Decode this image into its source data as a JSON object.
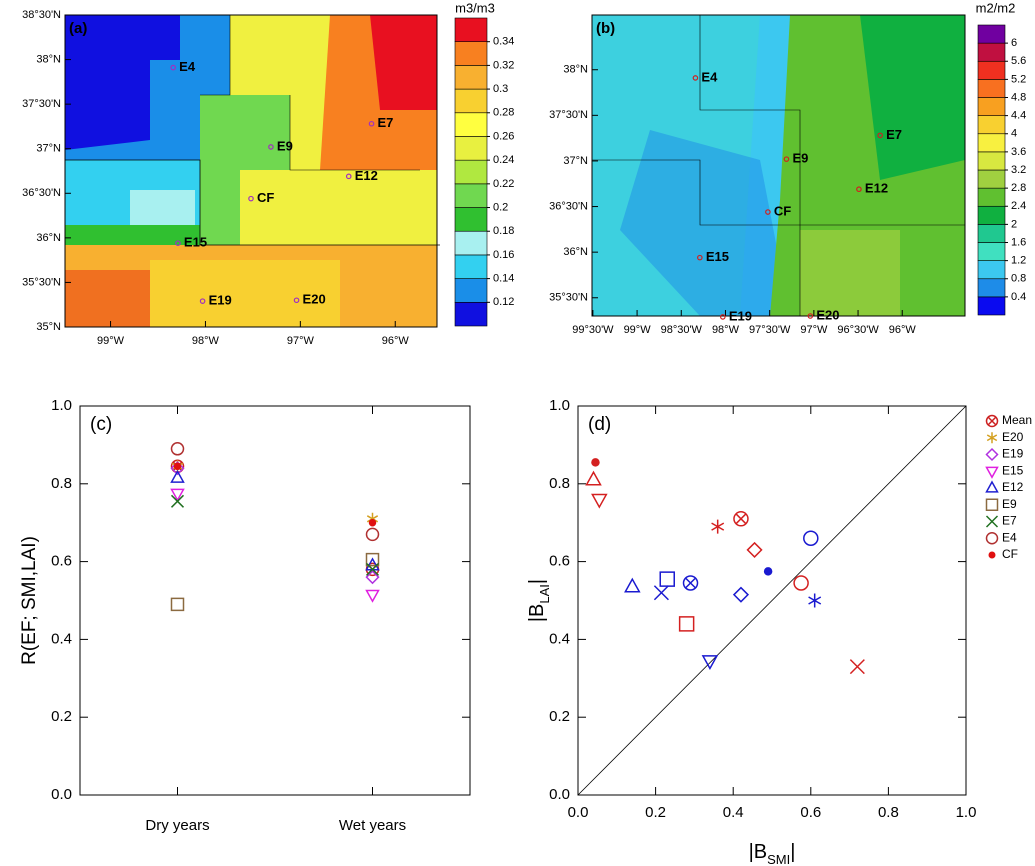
{
  "maps": [
    {
      "label": "(a)",
      "unit": "m3/m3",
      "lonlim": [
        -99.48,
        -95.56
      ],
      "latlim": [
        35,
        38.5
      ],
      "lat_ticks": [
        {
          "value": 35,
          "label": "35°N"
        },
        {
          "value": 35.5,
          "label": "35°30'N"
        },
        {
          "value": 36,
          "label": "36°N"
        },
        {
          "value": 36.5,
          "label": "36°30'N"
        },
        {
          "value": 37,
          "label": "37°N"
        },
        {
          "value": 37.5,
          "label": "37°30'N"
        },
        {
          "value": 38,
          "label": "38°N"
        },
        {
          "value": 38.5,
          "label": "38°30'N"
        }
      ],
      "lon_ticks": [
        {
          "value": -99,
          "label": "99°W"
        },
        {
          "value": -98,
          "label": "98°W"
        },
        {
          "value": -97,
          "label": "97°W"
        },
        {
          "value": -96,
          "label": "96°W"
        }
      ],
      "colorbar": {
        "levels": [
          0.12,
          0.14,
          0.16,
          0.18,
          0.2,
          0.22,
          0.24,
          0.26,
          0.28,
          0.3,
          0.32,
          0.34
        ],
        "colors": [
          "#1010e0",
          "#1a8ee8",
          "#33d0f0",
          "#a8f0f0",
          "#30c030",
          "#70d850",
          "#b0e840",
          "#e8f040",
          "#ffff40",
          "#f8d030",
          "#f8b030",
          "#f88020",
          "#e81020"
        ]
      },
      "site_color": "#a030c0",
      "sites": [
        {
          "name": "E4",
          "lon": -98.34,
          "lat": 37.91
        },
        {
          "name": "E7",
          "lon": -96.25,
          "lat": 37.28
        },
        {
          "name": "E9",
          "lon": -97.31,
          "lat": 37.02
        },
        {
          "name": "E12",
          "lon": -96.49,
          "lat": 36.69
        },
        {
          "name": "CF",
          "lon": -97.52,
          "lat": 36.44
        },
        {
          "name": "E15",
          "lon": -98.29,
          "lat": 35.94
        },
        {
          "name": "E19",
          "lon": -98.03,
          "lat": 35.29
        },
        {
          "name": "E20",
          "lon": -97.04,
          "lat": 35.3
        }
      ]
    },
    {
      "label": "(b)",
      "unit": "m2/m2",
      "lonlim": [
        -99.51,
        -95.29
      ],
      "latlim": [
        35.3,
        38.6
      ],
      "lat_ticks": [
        {
          "value": 35.5,
          "label": "35°30'N"
        },
        {
          "value": 36,
          "label": "36°N"
        },
        {
          "value": 36.5,
          "label": "36°30'N"
        },
        {
          "value": 37,
          "label": "37°N"
        },
        {
          "value": 37.5,
          "label": "37°30'N"
        },
        {
          "value": 38,
          "label": "38°N"
        }
      ],
      "lon_ticks": [
        {
          "value": -99.5,
          "label": "99°30'W"
        },
        {
          "value": -99,
          "label": "99°W"
        },
        {
          "value": -98.5,
          "label": "98°30'W"
        },
        {
          "value": -98,
          "label": "98°W"
        },
        {
          "value": -97.5,
          "label": "97°30'W"
        },
        {
          "value": -97,
          "label": "97°W"
        },
        {
          "value": -96.5,
          "label": "96°30'W"
        },
        {
          "value": -96,
          "label": "96°W"
        }
      ],
      "colorbar": {
        "levels": [
          0.4,
          0.8,
          1.2,
          1.6,
          2,
          2.4,
          2.8,
          3.2,
          3.6,
          4,
          4.4,
          4.8,
          5.2,
          5.6,
          6
        ],
        "colors": [
          "#0a0af0",
          "#1e8ce8",
          "#3cc8f0",
          "#40e0c0",
          "#20c890",
          "#10b040",
          "#60c030",
          "#a0d040",
          "#d8e840",
          "#f8f040",
          "#f8d030",
          "#f8a020",
          "#f87020",
          "#f03020",
          "#c01040",
          "#7000a0"
        ]
      },
      "site_color": "#d02020",
      "sites": [
        {
          "name": "E4",
          "lon": -98.34,
          "lat": 37.91
        },
        {
          "name": "E7",
          "lon": -96.25,
          "lat": 37.28
        },
        {
          "name": "E9",
          "lon": -97.31,
          "lat": 37.02
        },
        {
          "name": "E12",
          "lon": -96.49,
          "lat": 36.69
        },
        {
          "name": "CF",
          "lon": -97.52,
          "lat": 36.44
        },
        {
          "name": "E15",
          "lon": -98.29,
          "lat": 35.94
        },
        {
          "name": "E19",
          "lon": -98.03,
          "lat": 35.29
        },
        {
          "name": "E20",
          "lon": -97.04,
          "lat": 35.3
        }
      ]
    }
  ],
  "chart_data": [
    {
      "type": "dot",
      "label": "(c)",
      "ylabel": "R(EF; SMI,LAI)",
      "categories": [
        "Dry years",
        "Wet years"
      ],
      "ylim": [
        0,
        1
      ],
      "yticks": [
        {
          "value": 0,
          "label": "0.0"
        },
        0.2,
        0.4,
        0.6,
        0.8,
        {
          "value": 1,
          "label": "1.0"
        }
      ],
      "series": [
        {
          "name": "Mean",
          "marker": "circle-x",
          "color": "#cc2020",
          "values": [
            0.845,
            0.58
          ]
        },
        {
          "name": "E20",
          "marker": "asterisk",
          "color": "#d4a020",
          "values": [
            0.845,
            0.71
          ]
        },
        {
          "name": "E19",
          "marker": "diamond",
          "color": "#b030e0",
          "values": [
            0.84,
            0.56
          ]
        },
        {
          "name": "E15",
          "marker": "triangle-down",
          "color": "#e020e0",
          "values": [
            0.775,
            0.515
          ]
        },
        {
          "name": "E12",
          "marker": "triangle",
          "color": "#2020d0",
          "values": [
            0.815,
            0.59
          ]
        },
        {
          "name": "E9",
          "marker": "square",
          "color": "#8b6a40",
          "values": [
            0.49,
            0.605
          ]
        },
        {
          "name": "E7",
          "marker": "x",
          "color": "#207020",
          "values": [
            0.755,
            0.58
          ]
        },
        {
          "name": "E4",
          "marker": "circle",
          "color": "#b03030",
          "values": [
            0.89,
            0.67
          ]
        },
        {
          "name": "CF",
          "marker": "dot",
          "color": "#e01010",
          "values": [
            0.845,
            0.7
          ]
        }
      ]
    },
    {
      "type": "scatter",
      "label": "(d)",
      "xlabel": [
        "|B",
        "SMI",
        "|"
      ],
      "ylabel": [
        "|B",
        "LAI",
        "|"
      ],
      "xlim": [
        0,
        1
      ],
      "ylim": [
        0,
        1
      ],
      "xticks": [
        {
          "value": 0,
          "label": "0.0"
        },
        0.2,
        0.4,
        0.6,
        0.8,
        {
          "value": 1,
          "label": "1.0"
        }
      ],
      "yticks": [
        {
          "value": 0,
          "label": "0.0"
        },
        0.2,
        0.4,
        0.6,
        0.8,
        {
          "value": 1,
          "label": "1.0"
        }
      ],
      "point_colors": [
        "#d42020",
        "#1a1ad0"
      ],
      "series": [
        {
          "name": "Mean",
          "marker": "circle-x",
          "color": "#cc2020",
          "x": [
            0.42,
            0.29
          ],
          "values": [
            0.71,
            0.545
          ]
        },
        {
          "name": "E20",
          "marker": "asterisk",
          "color": "#d4a020",
          "x": [
            0.36,
            0.61
          ],
          "values": [
            0.69,
            0.5
          ]
        },
        {
          "name": "E19",
          "marker": "diamond",
          "color": "#b030e0",
          "x": [
            0.455,
            0.42
          ],
          "values": [
            0.63,
            0.515
          ]
        },
        {
          "name": "E15",
          "marker": "triangle-down",
          "color": "#e020e0",
          "x": [
            0.055,
            0.34
          ],
          "values": [
            0.76,
            0.345
          ]
        },
        {
          "name": "E12",
          "marker": "triangle",
          "color": "#2020d0",
          "x": [
            0.04,
            0.14
          ],
          "values": [
            0.81,
            0.535
          ]
        },
        {
          "name": "E9",
          "marker": "square",
          "color": "#8b6a40",
          "x": [
            0.28,
            0.23
          ],
          "values": [
            0.44,
            0.555
          ]
        },
        {
          "name": "E7",
          "marker": "x",
          "color": "#207020",
          "x": [
            0.72,
            0.215
          ],
          "values": [
            0.33,
            0.52
          ]
        },
        {
          "name": "E4",
          "marker": "circle",
          "color": "#b03030",
          "x": [
            0.575,
            0.6
          ],
          "values": [
            0.545,
            0.66
          ]
        },
        {
          "name": "CF",
          "marker": "dot",
          "color": "#e01010",
          "x": [
            0.045,
            0.49
          ],
          "values": [
            0.855,
            0.575
          ]
        }
      ]
    }
  ]
}
